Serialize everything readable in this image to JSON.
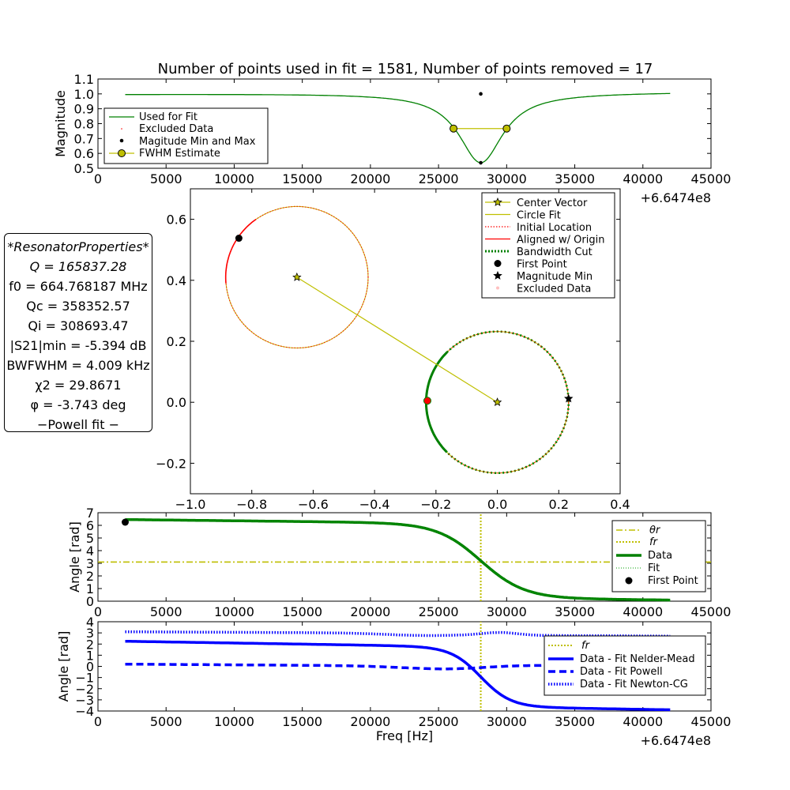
{
  "title": "Number of points used in fit = 1581, Number of points removed = 17",
  "properties": [
    "*ResonatorProperties*",
    "Q = 165837.28",
    "f0 = 664.768187 MHz",
    "Qc = 358352.57",
    "Qi = 308693.47",
    "|S21|min = -5.394 dB",
    "BWFWHM = 4.009 kHz",
    "χ2 = 29.8671",
    "φ = -3.743 deg",
    "−Powell fit −"
  ],
  "freq_offset_label": "+6.6474e8",
  "colors": {
    "green": "#008000",
    "red": "#ff0000",
    "olive": "#bfbf00",
    "blue": "#0000ff",
    "black": "#000000"
  },
  "chart_data": [
    {
      "id": "magnitude",
      "type": "line",
      "ylabel": "Magnitude",
      "xlim": [
        0,
        45000
      ],
      "ylim": [
        0.5,
        1.1
      ],
      "xticks": [
        0,
        5000,
        10000,
        15000,
        20000,
        25000,
        30000,
        35000,
        40000,
        45000
      ],
      "yticks": [
        0.5,
        0.6,
        0.7,
        0.8,
        0.9,
        1.0,
        1.1
      ],
      "resonance": {
        "f0": 28100,
        "fwhm": 3950,
        "baseline": 0.998,
        "min": 0.537,
        "x_range": [
          2000,
          42000
        ],
        "baseline_end": 1.012
      },
      "fwhm_points": {
        "x": [
          26100,
          30000
        ],
        "y": [
          0.767,
          0.767
        ]
      },
      "minmax_points": {
        "x": [
          28100,
          28100
        ],
        "y": [
          0.537,
          1.0
        ]
      },
      "legend": [
        "Used for Fit",
        "Excluded Data",
        "Magitude Min and Max",
        "FWHM Estimate"
      ]
    },
    {
      "id": "complex-plane",
      "type": "scatter",
      "xlim": [
        -1.0,
        0.4
      ],
      "ylim": [
        -0.3,
        0.7
      ],
      "xticks": [
        -1.0,
        -0.8,
        -0.6,
        -0.4,
        -0.2,
        0.0,
        0.2,
        0.4
      ],
      "yticks": [
        -0.2,
        0.0,
        0.2,
        0.4,
        0.6
      ],
      "circle_initial": {
        "cx": -0.653,
        "cy": 0.41,
        "r": 0.232
      },
      "circle_aligned": {
        "cx": 0.0,
        "cy": 0.0,
        "r": 0.232
      },
      "center_vector": {
        "x": [
          -0.653,
          0.0
        ],
        "y": [
          0.41,
          0.0
        ]
      },
      "first_point": {
        "x": -0.842,
        "y": 0.538
      },
      "aligned_first_point": {
        "x": -0.228,
        "y": 0.005
      },
      "magnitude_min": {
        "x": 0.232,
        "y": 0.012
      },
      "legend": [
        "Center Vector",
        "Circle Fit",
        "Initial Location",
        "Aligned w/ Origin",
        "Bandwidth Cut",
        "First Point",
        "Magnitude Min",
        "Excluded Data"
      ]
    },
    {
      "id": "phase",
      "type": "line",
      "ylabel": "Angle [rad]",
      "xlim": [
        0,
        45000
      ],
      "ylim": [
        0,
        7
      ],
      "xticks": [
        0,
        5000,
        10000,
        15000,
        20000,
        25000,
        30000,
        35000,
        40000,
        45000
      ],
      "yticks": [
        0,
        1,
        2,
        3,
        4,
        5,
        6,
        7
      ],
      "theta_r": 3.1,
      "f_r": 28100,
      "phase_model": {
        "center": 3.2,
        "amp": 3.1,
        "width": 2000,
        "slope": -1e-05,
        "x_range": [
          2000,
          42000
        ]
      },
      "first_point": {
        "x": 2000,
        "y": 6.25
      },
      "legend": [
        "θr",
        "fr",
        "Data",
        "Fit",
        "First Point"
      ]
    },
    {
      "id": "residuals",
      "type": "line",
      "xlabel": "Freq [Hz]",
      "ylabel": "Angle [rad]",
      "xlim": [
        0,
        45000
      ],
      "ylim": [
        -4,
        4
      ],
      "xticks": [
        0,
        5000,
        10000,
        15000,
        20000,
        25000,
        30000,
        35000,
        40000,
        45000
      ],
      "yticks": [
        -4,
        -3,
        -2,
        -1,
        0,
        1,
        2,
        3,
        4
      ],
      "f_r": 28100,
      "series": [
        {
          "name": "Data - Fit Nelder-Mead",
          "start": 2.25,
          "end": -3.9
        },
        {
          "name": "Data - Fit Powell",
          "start": 0.2,
          "end": 0.1
        },
        {
          "name": "Data - Fit Newton-CG",
          "start": 3.1,
          "end": 2.8
        }
      ],
      "legend": [
        "fr",
        "Data - Fit Nelder-Mead",
        "Data - Fit Powell",
        "Data - Fit Newton-CG"
      ]
    }
  ]
}
